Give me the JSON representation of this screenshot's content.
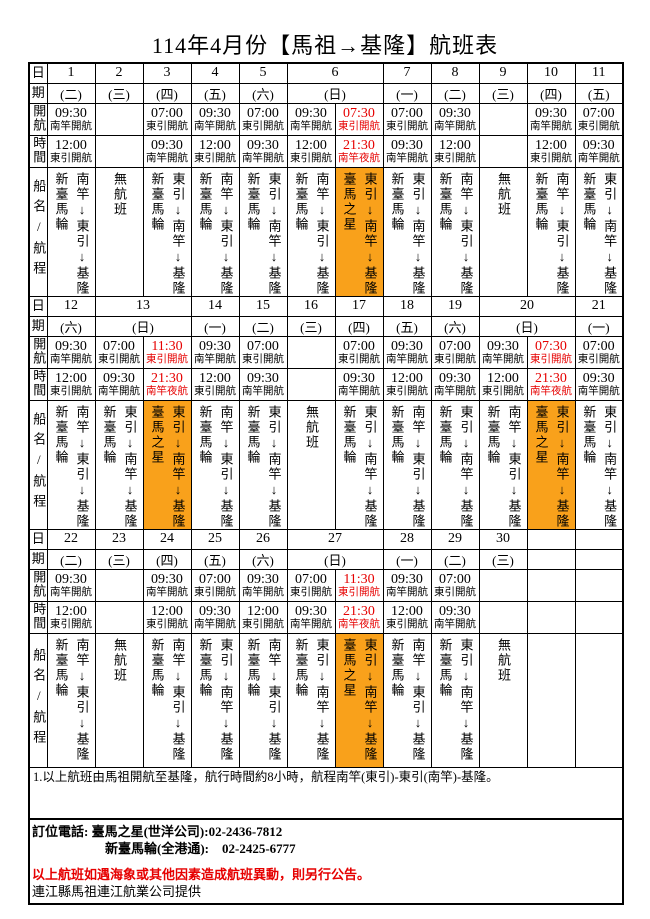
{
  "header": {
    "title": "114年4月份【馬祖→基隆】航班表"
  },
  "colors": {
    "highlight_orange": "#F9A11B",
    "schedule_red": "#E60000"
  },
  "row_labels": {
    "date_top": "日",
    "date_bottom": "期",
    "time_top": "開航",
    "time_bottom": "時間",
    "ship": "船名/航程"
  },
  "weeks": [
    {
      "days": [
        {
          "day": "1",
          "weekday": "(二)",
          "cols": [
            {
              "time1": "09:30",
              "port1": "南竿開航",
              "time2": "12:00",
              "port2": "東引開航",
              "ship": "新臺馬輪",
              "route": "南竿↓東引↓基隆",
              "red": false,
              "highlight": false
            }
          ]
        },
        {
          "day": "2",
          "weekday": "(三)",
          "cols": [
            {
              "no_service": "無航班"
            }
          ]
        },
        {
          "day": "3",
          "weekday": "(四)",
          "cols": [
            {
              "time1": "07:00",
              "port1": "東引開航",
              "time2": "09:30",
              "port2": "南竿開航",
              "ship": "新臺馬輪",
              "route": "東引↓南竿↓基隆",
              "red": false,
              "highlight": false
            }
          ]
        },
        {
          "day": "4",
          "weekday": "(五)",
          "cols": [
            {
              "time1": "09:30",
              "port1": "南竿開航",
              "time2": "12:00",
              "port2": "東引開航",
              "ship": "新臺馬輪",
              "route": "南竿↓東引↓基隆",
              "red": false,
              "highlight": false
            }
          ]
        },
        {
          "day": "5",
          "weekday": "(六)",
          "cols": [
            {
              "time1": "07:00",
              "port1": "東引開航",
              "time2": "09:30",
              "port2": "南竿開航",
              "ship": "新臺馬輪",
              "route": "東引↓南竿↓基隆",
              "red": false,
              "highlight": false
            }
          ]
        },
        {
          "day": "6",
          "weekday": "(日)",
          "cols": [
            {
              "time1": "09:30",
              "port1": "南竿開航",
              "time2": "12:00",
              "port2": "東引開航",
              "ship": "新臺馬輪",
              "route": "南竿↓東引↓基隆",
              "red": false,
              "highlight": false
            },
            {
              "time1": "07:30",
              "port1": "東引開航",
              "time2": "21:30",
              "port2": "南竿夜航",
              "ship": "臺馬之星",
              "route": "東引↓南竿↓基隆",
              "red": true,
              "highlight": true
            }
          ]
        },
        {
          "day": "7",
          "weekday": "(一)",
          "cols": [
            {
              "time1": "07:00",
              "port1": "東引開航",
              "time2": "09:30",
              "port2": "南竿開航",
              "ship": "新臺馬輪",
              "route": "東引↓南竿↓基隆",
              "red": false,
              "highlight": false
            }
          ]
        },
        {
          "day": "8",
          "weekday": "(二)",
          "cols": [
            {
              "time1": "09:30",
              "port1": "南竿開航",
              "time2": "12:00",
              "port2": "東引開航",
              "ship": "新臺馬輪",
              "route": "南竿↓東引↓基隆",
              "red": false,
              "highlight": false
            }
          ]
        },
        {
          "day": "9",
          "weekday": "(三)",
          "cols": [
            {
              "no_service": "無航班"
            }
          ]
        },
        {
          "day": "10",
          "weekday": "(四)",
          "cols": [
            {
              "time1": "09:30",
              "port1": "南竿開航",
              "time2": "12:00",
              "port2": "東引開航",
              "ship": "新臺馬輪",
              "route": "南竿↓東引↓基隆",
              "red": false,
              "highlight": false
            }
          ]
        },
        {
          "day": "11",
          "weekday": "(五)",
          "cols": [
            {
              "time1": "07:00",
              "port1": "東引開航",
              "time2": "09:30",
              "port2": "南竿開航",
              "ship": "新臺馬輪",
              "route": "東引↓南竿↓基隆",
              "red": false,
              "highlight": false
            }
          ]
        }
      ]
    },
    {
      "days": [
        {
          "day": "12",
          "weekday": "(六)",
          "cols": [
            {
              "time1": "09:30",
              "port1": "南竿開航",
              "time2": "12:00",
              "port2": "東引開航",
              "ship": "新臺馬輪",
              "route": "南竿↓東引↓基隆",
              "red": false,
              "highlight": false
            }
          ]
        },
        {
          "day": "13",
          "weekday": "(日)",
          "cols": [
            {
              "time1": "07:00",
              "port1": "東引開航",
              "time2": "09:30",
              "port2": "南竿開航",
              "ship": "新臺馬輪",
              "route": "東引↓南竿↓基隆",
              "red": false,
              "highlight": false
            },
            {
              "time1": "11:30",
              "port1": "東引開航",
              "time2": "21:30",
              "port2": "南竿夜航",
              "ship": "臺馬之星",
              "route": "東引↓南竿↓基隆",
              "red": true,
              "highlight": true
            }
          ]
        },
        {
          "day": "14",
          "weekday": "(一)",
          "cols": [
            {
              "time1": "09:30",
              "port1": "南竿開航",
              "time2": "12:00",
              "port2": "東引開航",
              "ship": "新臺馬輪",
              "route": "南竿↓東引↓基隆",
              "red": false,
              "highlight": false
            }
          ]
        },
        {
          "day": "15",
          "weekday": "(二)",
          "cols": [
            {
              "time1": "07:00",
              "port1": "東引開航",
              "time2": "09:30",
              "port2": "南竿開航",
              "ship": "新臺馬輪",
              "route": "東引↓南竿↓基隆",
              "red": false,
              "highlight": false
            }
          ]
        },
        {
          "day": "16",
          "weekday": "(三)",
          "cols": [
            {
              "no_service": "無航班"
            }
          ]
        },
        {
          "day": "17",
          "weekday": "(四)",
          "cols": [
            {
              "time1": "07:00",
              "port1": "東引開航",
              "time2": "09:30",
              "port2": "南竿開航",
              "ship": "新臺馬輪",
              "route": "東引↓南竿↓基隆",
              "red": false,
              "highlight": false
            }
          ]
        },
        {
          "day": "18",
          "weekday": "(五)",
          "cols": [
            {
              "time1": "09:30",
              "port1": "南竿開航",
              "time2": "12:00",
              "port2": "東引開航",
              "ship": "新臺馬輪",
              "route": "南竿↓東引↓基隆",
              "red": false,
              "highlight": false
            }
          ]
        },
        {
          "day": "19",
          "weekday": "(六)",
          "cols": [
            {
              "time1": "07:00",
              "port1": "東引開航",
              "time2": "09:30",
              "port2": "南竿開航",
              "ship": "新臺馬輪",
              "route": "東引↓南竿↓基隆",
              "red": false,
              "highlight": false
            }
          ]
        },
        {
          "day": "20",
          "weekday": "(日)",
          "cols": [
            {
              "time1": "09:30",
              "port1": "南竿開航",
              "time2": "12:00",
              "port2": "東引開航",
              "ship": "新臺馬輪",
              "route": "南竿↓東引↓基隆",
              "red": false,
              "highlight": false
            },
            {
              "time1": "07:30",
              "port1": "東引開航",
              "time2": "21:30",
              "port2": "南竿夜航",
              "ship": "臺馬之星",
              "route": "東引↓南竿↓基隆",
              "red": true,
              "highlight": true
            }
          ]
        },
        {
          "day": "21",
          "weekday": "(一)",
          "cols": [
            {
              "time1": "07:00",
              "port1": "東引開航",
              "time2": "09:30",
              "port2": "南竿開航",
              "ship": "新臺馬輪",
              "route": "東引↓南竿↓基隆",
              "red": false,
              "highlight": false
            }
          ]
        }
      ]
    },
    {
      "days": [
        {
          "day": "22",
          "weekday": "(二)",
          "cols": [
            {
              "time1": "09:30",
              "port1": "南竿開航",
              "time2": "12:00",
              "port2": "東引開航",
              "ship": "新臺馬輪",
              "route": "南竿↓東引↓基隆",
              "red": false,
              "highlight": false
            }
          ]
        },
        {
          "day": "23",
          "weekday": "(三)",
          "cols": [
            {
              "no_service": "無航班"
            }
          ]
        },
        {
          "day": "24",
          "weekday": "(四)",
          "cols": [
            {
              "time1": "09:30",
              "port1": "南竿開航",
              "time2": "12:00",
              "port2": "東引開航",
              "ship": "新臺馬輪",
              "route": "南竿↓東引↓基隆",
              "red": false,
              "highlight": false
            }
          ]
        },
        {
          "day": "25",
          "weekday": "(五)",
          "cols": [
            {
              "time1": "07:00",
              "port1": "東引開航",
              "time2": "09:30",
              "port2": "南竿開航",
              "ship": "新臺馬輪",
              "route": "東引↓南竿↓基隆",
              "red": false,
              "highlight": false
            }
          ]
        },
        {
          "day": "26",
          "weekday": "(六)",
          "cols": [
            {
              "time1": "09:30",
              "port1": "南竿開航",
              "time2": "12:00",
              "port2": "東引開航",
              "ship": "新臺馬輪",
              "route": "南竿↓東引↓基隆",
              "red": false,
              "highlight": false
            }
          ]
        },
        {
          "day": "27",
          "weekday": "(日)",
          "cols": [
            {
              "time1": "07:00",
              "port1": "東引開航",
              "time2": "09:30",
              "port2": "南竿開航",
              "ship": "新臺馬輪",
              "route": "東引↓南竿↓基隆",
              "red": false,
              "highlight": false
            },
            {
              "time1": "11:30",
              "port1": "東引開航",
              "time2": "21:30",
              "port2": "南竿夜航",
              "ship": "臺馬之星",
              "route": "東引↓南竿↓基隆",
              "red": true,
              "highlight": true
            }
          ]
        },
        {
          "day": "28",
          "weekday": "(一)",
          "cols": [
            {
              "time1": "09:30",
              "port1": "南竿開航",
              "time2": "12:00",
              "port2": "東引開航",
              "ship": "新臺馬輪",
              "route": "南竿↓東引↓基隆",
              "red": false,
              "highlight": false
            }
          ]
        },
        {
          "day": "29",
          "weekday": "(二)",
          "cols": [
            {
              "time1": "07:00",
              "port1": "東引開航",
              "time2": "09:30",
              "port2": "南竿開航",
              "ship": "新臺馬輪",
              "route": "東引↓南竿↓基隆",
              "red": false,
              "highlight": false
            }
          ]
        },
        {
          "day": "30",
          "weekday": "(三)",
          "cols": [
            {
              "no_service": "無航班"
            }
          ]
        },
        {
          "day": "",
          "weekday": "",
          "cols": [
            {
              "empty": true
            }
          ]
        },
        {
          "day": "",
          "weekday": "",
          "cols": [
            {
              "empty": true
            }
          ]
        }
      ]
    }
  ],
  "notes": {
    "note1": "1.以上航班由馬祖開航至基隆，航行時間約8小時，航程南竿(東引)-東引(南竿)-基隆。",
    "phone_line1": "訂位電話: 臺馬之星(世洋公司):02-2436-7812",
    "phone_line2": "新臺馬輪(全港通):　02-2425-6777",
    "alert": "以上航班如遇海象或其他因素造成航班異動，則另行公告。",
    "provider": "連江縣馬祖連江航業公司提供"
  }
}
